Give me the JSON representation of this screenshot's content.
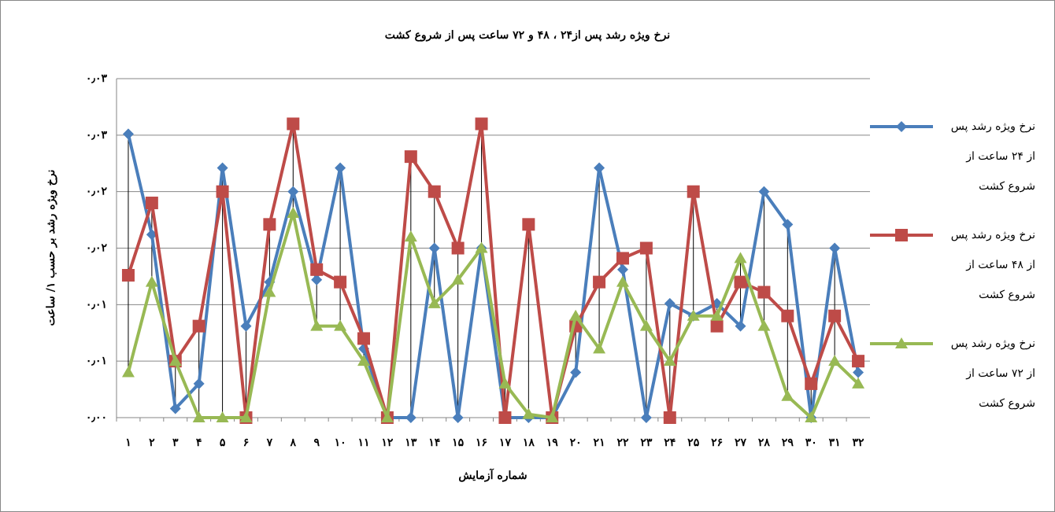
{
  "chart_data": {
    "type": "line",
    "title": "نرخ ویژه رشد پس از۲۴ ، ۴۸ و ۷۲ ساعت پس از شروع کشت",
    "x_label": "شماره آزمایش",
    "y_label": "نرخ ویژه رشد بر حسب ۱/ ساعت",
    "categories": [
      "۱",
      "۲",
      "۳",
      "۴",
      "۵",
      "۶",
      "۷",
      "۸",
      "۹",
      "۱۰",
      "۱۱",
      "۱۲",
      "۱۳",
      "۱۴",
      "۱۵",
      "۱۶",
      "۱۷",
      "۱۸",
      "۱۹",
      "۲۰",
      "۲۱",
      "۲۲",
      "۲۳",
      "۲۴",
      "۲۵",
      "۲۶",
      "۲۷",
      "۲۸",
      "۲۹",
      "۳۰",
      "۳۱",
      "۳۲"
    ],
    "ylim": [
      0,
      0.03
    ],
    "yticks": [
      {
        "value": 0,
        "label": "۰٫۰۰"
      },
      {
        "value": 0.005,
        "label": "۰٫۰۱"
      },
      {
        "value": 0.01,
        "label": "۰٫۰۱"
      },
      {
        "value": 0.015,
        "label": "۰٫۰۲"
      },
      {
        "value": 0.02,
        "label": "۰٫۰۲"
      },
      {
        "value": 0.025,
        "label": "۰٫۰۳"
      },
      {
        "value": 0.03,
        "label": "۰٫۰۳"
      }
    ],
    "grid": true,
    "high_low_lines": true,
    "legend": "right",
    "series": [
      {
        "name": "نرخ ویژه رشد پس از ۲۴ ساعت از شروع کشت",
        "color": "#4a7ebb",
        "marker": "diamond",
        "values": [
          0.0251,
          0.0162,
          0.0008,
          0.003,
          0.0221,
          0.0081,
          0.012,
          0.02,
          0.0122,
          0.0221,
          0.0061,
          0,
          0,
          0.015,
          0,
          0.015,
          0,
          0,
          0,
          0.004,
          0.0221,
          0.0131,
          0,
          0.0101,
          0.009,
          0.0101,
          0.0081,
          0.02,
          0.0171,
          0,
          0.015,
          0.004
        ]
      },
      {
        "name": "نرخ ویژه رشد پس از ۴۸ ساعت از شروع کشت",
        "color": "#be4b48",
        "marker": "square",
        "values": [
          0.0126,
          0.019,
          0.005,
          0.0081,
          0.02,
          0,
          0.0171,
          0.026,
          0.0131,
          0.012,
          0.007,
          0,
          0.0231,
          0.02,
          0.015,
          0.026,
          0,
          0.0171,
          0,
          0.0081,
          0.012,
          0.0141,
          0.015,
          0,
          0.02,
          0.0081,
          0.012,
          0.0111,
          0.009,
          0.003,
          0.009,
          0.005
        ]
      },
      {
        "name": "نرخ ویژه رشد پس از ۷۲ ساعت از شروع کشت",
        "color": "#98b954",
        "marker": "triangle",
        "values": [
          0.004,
          0.012,
          0.005,
          0,
          0,
          0,
          0.0111,
          0.0181,
          0.0081,
          0.0081,
          0.005,
          0,
          0.016,
          0.0101,
          0.0122,
          0.015,
          0.003,
          0.0003,
          0,
          0.009,
          0.0061,
          0.012,
          0.0081,
          0.005,
          0.009,
          0.009,
          0.0141,
          0.0081,
          0.0019,
          0,
          0.005,
          0.003
        ]
      }
    ]
  }
}
